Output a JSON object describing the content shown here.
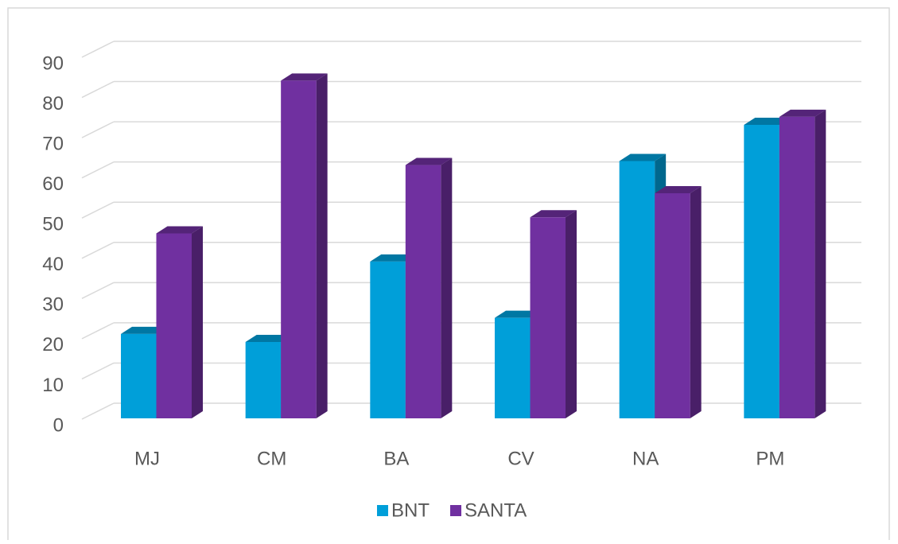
{
  "chart_data": {
    "type": "bar3d",
    "categories": [
      "MJ",
      "CM",
      "BA",
      "CV",
      "NA",
      "PM"
    ],
    "series": [
      {
        "name": "BNT",
        "color": "#009fd9",
        "values": [
          20,
          18,
          38,
          24,
          63,
          72
        ]
      },
      {
        "name": "SANTA",
        "color": "#7030a0",
        "values": [
          45,
          83,
          62,
          49,
          55,
          74
        ]
      }
    ],
    "ylim": [
      0,
      90
    ],
    "yticks": [
      0,
      10,
      20,
      30,
      40,
      50,
      60,
      70,
      80,
      90
    ],
    "grid": true,
    "legend": "bottom"
  }
}
